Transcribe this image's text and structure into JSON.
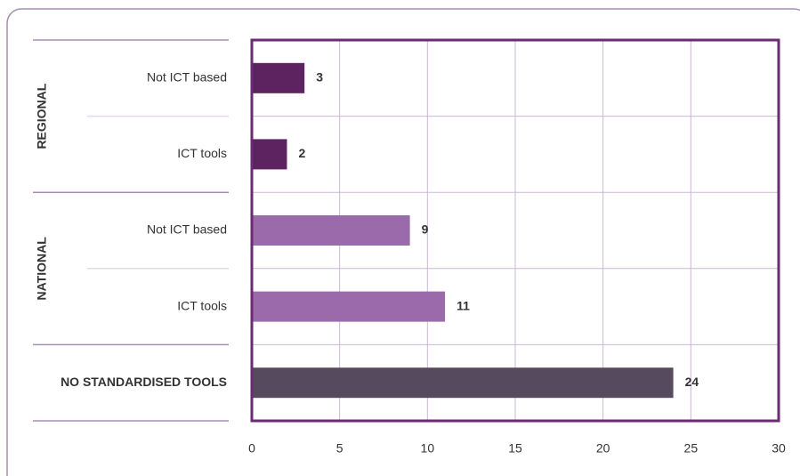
{
  "chart_data": {
    "type": "bar",
    "orientation": "horizontal",
    "series": [
      {
        "name": "REGIONAL",
        "color": "#5c2360",
        "categories": [
          "Not ICT based",
          "ICT tools"
        ],
        "values": [
          3,
          2
        ]
      },
      {
        "name": "NATIONAL",
        "color": "#9b6aab",
        "categories": [
          "Not ICT based",
          "ICT tools"
        ],
        "values": [
          9,
          11
        ]
      },
      {
        "name": "NO STANDARDISED TOOLS",
        "color": "#564a5e",
        "categories": [
          null
        ],
        "values": [
          24
        ]
      }
    ],
    "xlim": [
      0,
      30
    ],
    "xticks": [
      0,
      5,
      10,
      15,
      20,
      25,
      30
    ],
    "grid": true
  }
}
